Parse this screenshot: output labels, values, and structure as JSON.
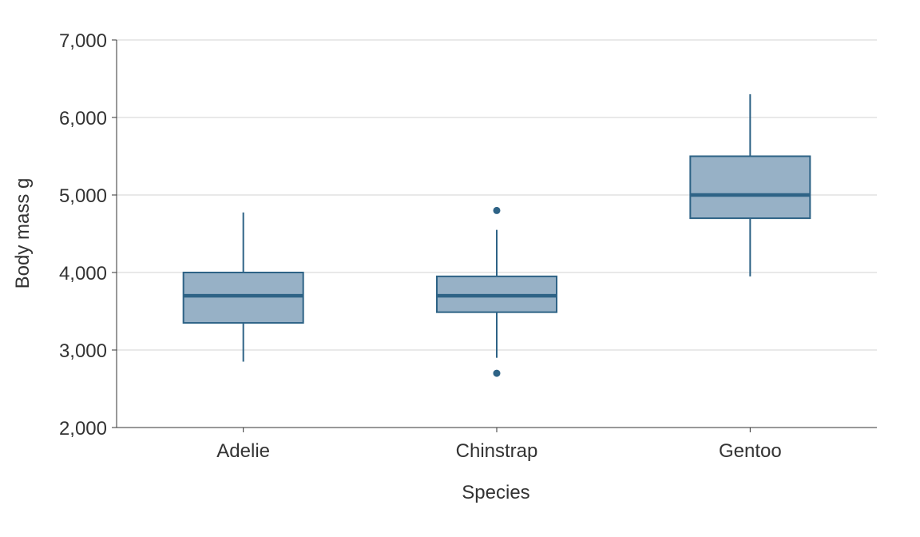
{
  "chart_data": {
    "type": "box",
    "xlabel": "Species",
    "ylabel": "Body mass g",
    "ylim": [
      2000,
      7000
    ],
    "yticks": [
      2000,
      3000,
      4000,
      5000,
      6000,
      7000
    ],
    "ytick_labels": [
      "2,000",
      "3,000",
      "4,000",
      "5,000",
      "6,000",
      "7,000"
    ],
    "grid": "horizontal",
    "categories": [
      "Adelie",
      "Chinstrap",
      "Gentoo"
    ],
    "boxes": [
      {
        "category": "Adelie",
        "whisker_low": 2850,
        "q1": 3350,
        "median": 3700,
        "q3": 4000,
        "whisker_high": 4775,
        "outliers": []
      },
      {
        "category": "Chinstrap",
        "whisker_low": 2900,
        "q1": 3488,
        "median": 3700,
        "q3": 3950,
        "whisker_high": 4550,
        "outliers": [
          2700,
          4800
        ]
      },
      {
        "category": "Gentoo",
        "whisker_low": 3950,
        "q1": 4700,
        "median": 5000,
        "q3": 5500,
        "whisker_high": 6300,
        "outliers": []
      }
    ],
    "colors": {
      "fill": "#97b1c6",
      "stroke": "#2e6386",
      "grid": "#d3d3d3",
      "axis": "#333333"
    }
  }
}
